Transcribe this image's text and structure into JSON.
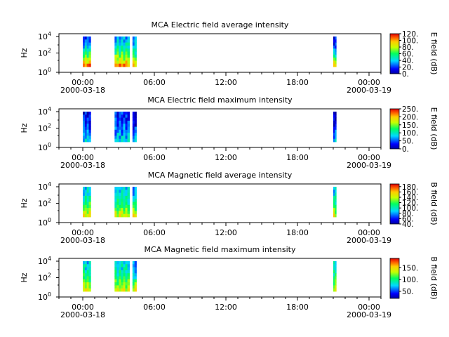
{
  "chart_data": [
    {
      "type": "heatmap",
      "title": "MCA  Electric field average intensity",
      "ylabel": "Hz",
      "colorbar_label": "E field (dB)",
      "colorbar_ticks": [
        "0.",
        "20.",
        "40.",
        "60.",
        "80.",
        "100.",
        "120."
      ],
      "colorbar_range": [
        0,
        120
      ],
      "y_scale": "log",
      "y_tick_labels": [
        [
          "10",
          "0"
        ],
        [
          "10",
          "2"
        ],
        [
          "10",
          "4"
        ]
      ],
      "x_tick_labels": [
        "00:00",
        "06:00",
        "12:00",
        "18:00",
        "00:00"
      ],
      "x_date_labels": [
        "2000-03-18",
        "2000-03-19"
      ],
      "x_range": [
        "2000-03-17T22:00",
        "2000-03-19T01:00"
      ],
      "data_blocks": [
        {
          "start": "2000-03-18T00:00",
          "end": "2000-03-18T00:40",
          "low_level": 0.95,
          "high_level": 0.25
        },
        {
          "start": "2000-03-18T02:40",
          "end": "2000-03-18T03:55",
          "low_level": 0.9,
          "high_level": 0.35
        },
        {
          "start": "2000-03-18T04:10",
          "end": "2000-03-18T04:30",
          "low_level": 0.85,
          "high_level": 0.3
        },
        {
          "start": "2000-03-18T21:00",
          "end": "2000-03-18T21:15",
          "low_level": 0.85,
          "high_level": 0.15
        }
      ]
    },
    {
      "type": "heatmap",
      "title": "MCA  Electric field maximum intensity",
      "ylabel": "Hz",
      "colorbar_label": "E field (dB)",
      "colorbar_ticks": [
        "0.",
        "50.",
        "100.",
        "150.",
        "200.",
        "250."
      ],
      "colorbar_range": [
        0,
        250
      ],
      "y_scale": "log",
      "y_tick_labels": [
        [
          "10",
          "0"
        ],
        [
          "10",
          "2"
        ],
        [
          "10",
          "4"
        ]
      ],
      "x_tick_labels": [
        "00:00",
        "06:00",
        "12:00",
        "18:00",
        "00:00"
      ],
      "x_date_labels": [
        "2000-03-18",
        "2000-03-19"
      ],
      "x_range": [
        "2000-03-17T22:00",
        "2000-03-19T01:00"
      ],
      "data_blocks": [
        {
          "start": "2000-03-18T00:00",
          "end": "2000-03-18T00:40",
          "low_level": 0.4,
          "high_level": 0.15
        },
        {
          "start": "2000-03-18T02:40",
          "end": "2000-03-18T03:55",
          "low_level": 0.4,
          "high_level": 0.2
        },
        {
          "start": "2000-03-18T04:10",
          "end": "2000-03-18T04:30",
          "low_level": 0.35,
          "high_level": 0.1
        },
        {
          "start": "2000-03-18T21:00",
          "end": "2000-03-18T21:15",
          "low_level": 0.35,
          "high_level": 0.1
        }
      ]
    },
    {
      "type": "heatmap",
      "title": "MCA  Magnetic field average intensity",
      "ylabel": "Hz",
      "colorbar_label": "B field (dB)",
      "colorbar_ticks": [
        "40.",
        "60.",
        "80.",
        "100.",
        "120.",
        "140.",
        "160.",
        "180."
      ],
      "colorbar_range": [
        40,
        190
      ],
      "y_scale": "log",
      "y_tick_labels": [
        [
          "10",
          "0"
        ],
        [
          "10",
          "2"
        ],
        [
          "10",
          "4"
        ]
      ],
      "x_tick_labels": [
        "00:00",
        "06:00",
        "12:00",
        "18:00",
        "00:00"
      ],
      "x_date_labels": [
        "2000-03-18",
        "2000-03-19"
      ],
      "x_range": [
        "2000-03-17T22:00",
        "2000-03-19T01:00"
      ],
      "data_blocks": [
        {
          "start": "2000-03-18T00:00",
          "end": "2000-03-18T00:40",
          "low_level": 0.8,
          "high_level": 0.38
        },
        {
          "start": "2000-03-18T02:40",
          "end": "2000-03-18T03:55",
          "low_level": 0.75,
          "high_level": 0.38
        },
        {
          "start": "2000-03-18T04:10",
          "end": "2000-03-18T04:30",
          "low_level": 0.8,
          "high_level": 0.3
        },
        {
          "start": "2000-03-18T21:00",
          "end": "2000-03-18T21:15",
          "low_level": 0.75,
          "high_level": 0.38
        }
      ]
    },
    {
      "type": "heatmap",
      "title": "MCA  Magnetic field maximum intensity",
      "ylabel": "Hz",
      "colorbar_label": "B field (dB)",
      "colorbar_ticks": [
        "50.",
        "100.",
        "150."
      ],
      "colorbar_range": [
        20,
        190
      ],
      "y_scale": "log",
      "y_tick_labels": [
        [
          "10",
          "0"
        ],
        [
          "10",
          "2"
        ],
        [
          "10",
          "4"
        ]
      ],
      "x_tick_labels": [
        "00:00",
        "06:00",
        "12:00",
        "18:00",
        "00:00"
      ],
      "x_date_labels": [
        "2000-03-18",
        "2000-03-19"
      ],
      "x_range": [
        "2000-03-17T22:00",
        "2000-03-19T01:00"
      ],
      "data_blocks": [
        {
          "start": "2000-03-18T00:00",
          "end": "2000-03-18T00:40",
          "low_level": 0.78,
          "high_level": 0.4
        },
        {
          "start": "2000-03-18T02:40",
          "end": "2000-03-18T03:55",
          "low_level": 0.75,
          "high_level": 0.4
        },
        {
          "start": "2000-03-18T04:10",
          "end": "2000-03-18T04:30",
          "low_level": 0.8,
          "high_level": 0.3
        },
        {
          "start": "2000-03-18T21:00",
          "end": "2000-03-18T21:15",
          "low_level": 0.75,
          "high_level": 0.4
        }
      ]
    }
  ]
}
